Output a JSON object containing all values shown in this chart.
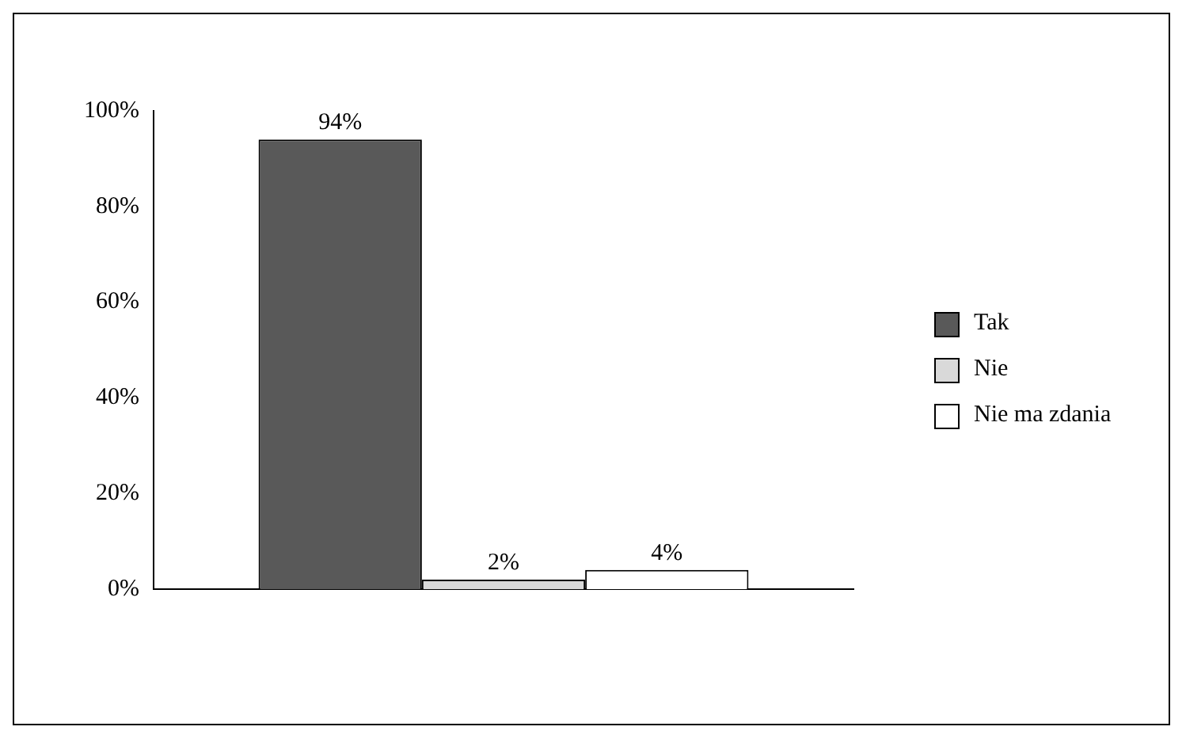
{
  "chart_data": {
    "type": "bar",
    "categories": [
      null
    ],
    "series": [
      {
        "name": "Tak",
        "color": "#595959",
        "values": [
          94
        ],
        "value_labels": [
          "94%"
        ]
      },
      {
        "name": "Nie",
        "color": "#d9d9d9",
        "values": [
          2
        ],
        "value_labels": [
          "2%"
        ]
      },
      {
        "name": "Nie ma zdania",
        "color": "#ffffff",
        "values": [
          4
        ],
        "value_labels": [
          "4%"
        ]
      }
    ],
    "ylim": [
      0,
      100
    ],
    "yticks": [
      {
        "value": 0,
        "label": "0%"
      },
      {
        "value": 20,
        "label": "20%"
      },
      {
        "value": 40,
        "label": "40%"
      },
      {
        "value": 60,
        "label": "60%"
      },
      {
        "value": 80,
        "label": "80%"
      },
      {
        "value": 100,
        "label": "100%"
      }
    ],
    "grid": false,
    "legend": "right"
  }
}
